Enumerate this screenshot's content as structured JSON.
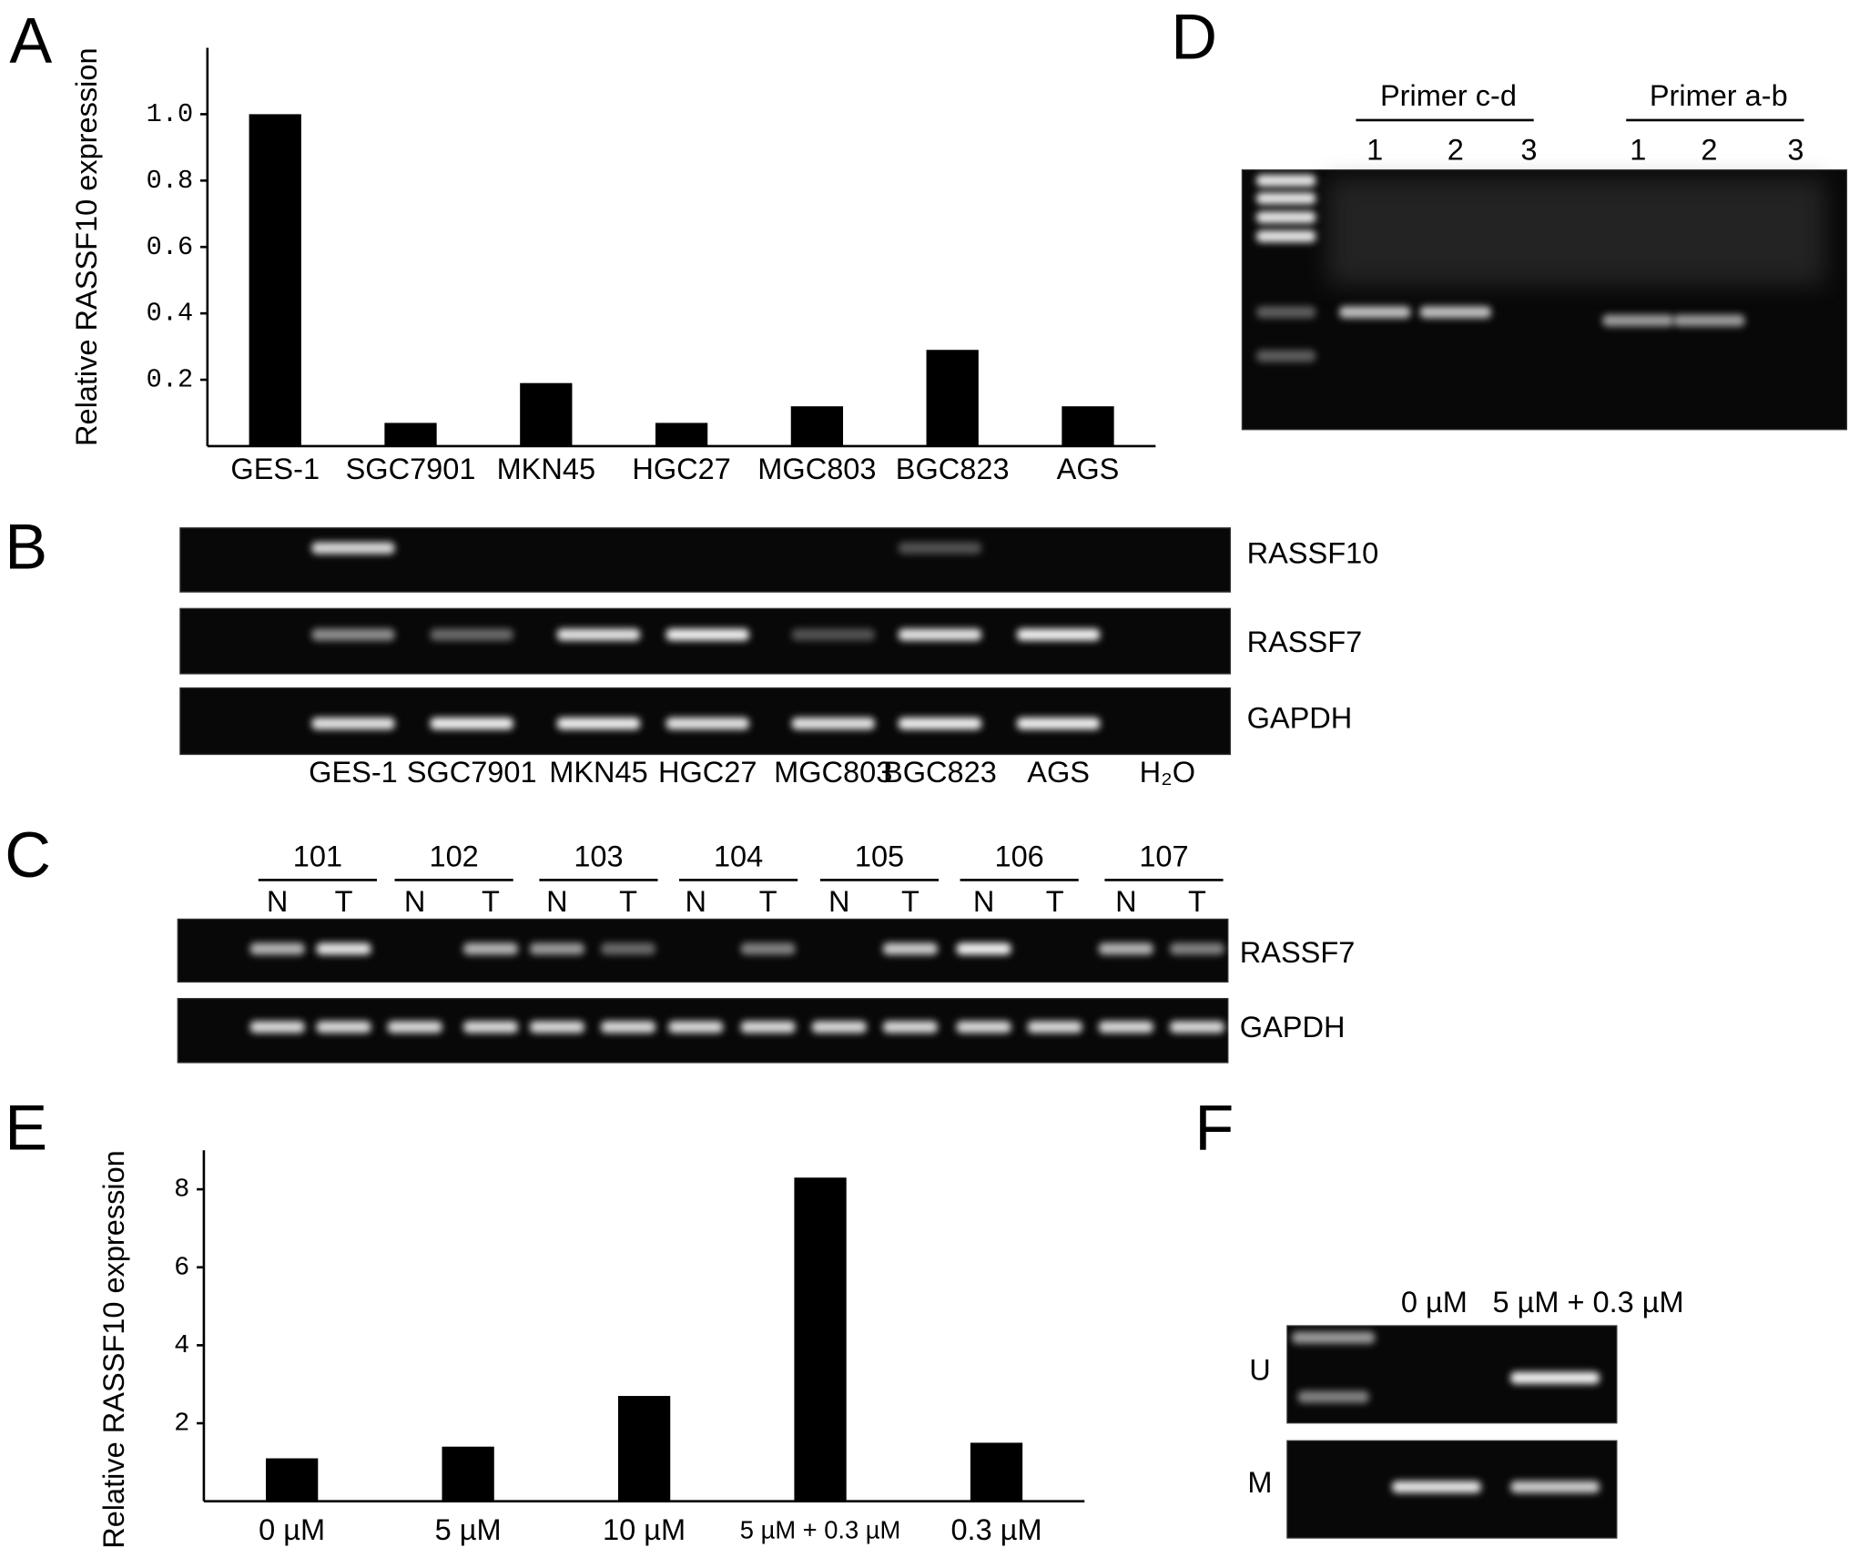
{
  "panel_labels": [
    "A",
    "B",
    "C",
    "D",
    "E",
    "F"
  ],
  "chart_data": [
    {
      "type": "bar",
      "y_label": "Relative RASSF10 expression",
      "categories": [
        "GES-1",
        "SGC7901",
        "MKN45",
        "HGC27",
        "MGC803",
        "BGC823",
        "AGS"
      ],
      "values": [
        1.0,
        0.07,
        0.19,
        0.07,
        0.12,
        0.29,
        0.12
      ],
      "color": "#000000",
      "ylim": [
        0,
        1.2
      ],
      "yticks": [
        0.2,
        0.4,
        0.6,
        0.8,
        {
          "value": 1,
          "label": "1.0"
        }
      ],
      "grid": false
    },
    {
      "type": "bar",
      "y_label": "Relative RASSF10 expression",
      "categories": [
        "0 µM",
        "5 µM",
        "10 µM",
        "5 µM + 0.3 µM",
        "0.3 µM"
      ],
      "values": [
        1.1,
        1.4,
        2.7,
        8.3,
        1.5
      ],
      "color": "#000000",
      "ylim": [
        0,
        9
      ],
      "yticks": [
        2,
        4,
        6,
        8
      ],
      "grid": false
    }
  ],
  "gel_b": {
    "rows": [
      "RASSF10",
      "RASSF7",
      "GAPDH"
    ],
    "lanes": [
      "GES-1",
      "SGC7901",
      "MKN45",
      "HGC27",
      "MGC803",
      "BGC823",
      "AGS",
      "H₂O"
    ]
  },
  "gel_c": {
    "samples": [
      "101",
      "102",
      "103",
      "104",
      "105",
      "106",
      "107"
    ],
    "lanes": [
      "N",
      "T",
      "N",
      "T",
      "N",
      "T",
      "N",
      "T",
      "N",
      "T",
      "N",
      "T",
      "N",
      "T"
    ],
    "rows": [
      "RASSF7",
      "GAPDH"
    ]
  },
  "gel_d": {
    "groups": [
      "Primer c-d",
      "Primer a-b"
    ],
    "lanes": [
      "1",
      "2",
      "3",
      "1",
      "2",
      "3"
    ]
  },
  "gel_f": {
    "lanes": [
      "0 µM",
      "5 µM + 0.3 µM"
    ],
    "rows": [
      "U",
      "M"
    ]
  }
}
